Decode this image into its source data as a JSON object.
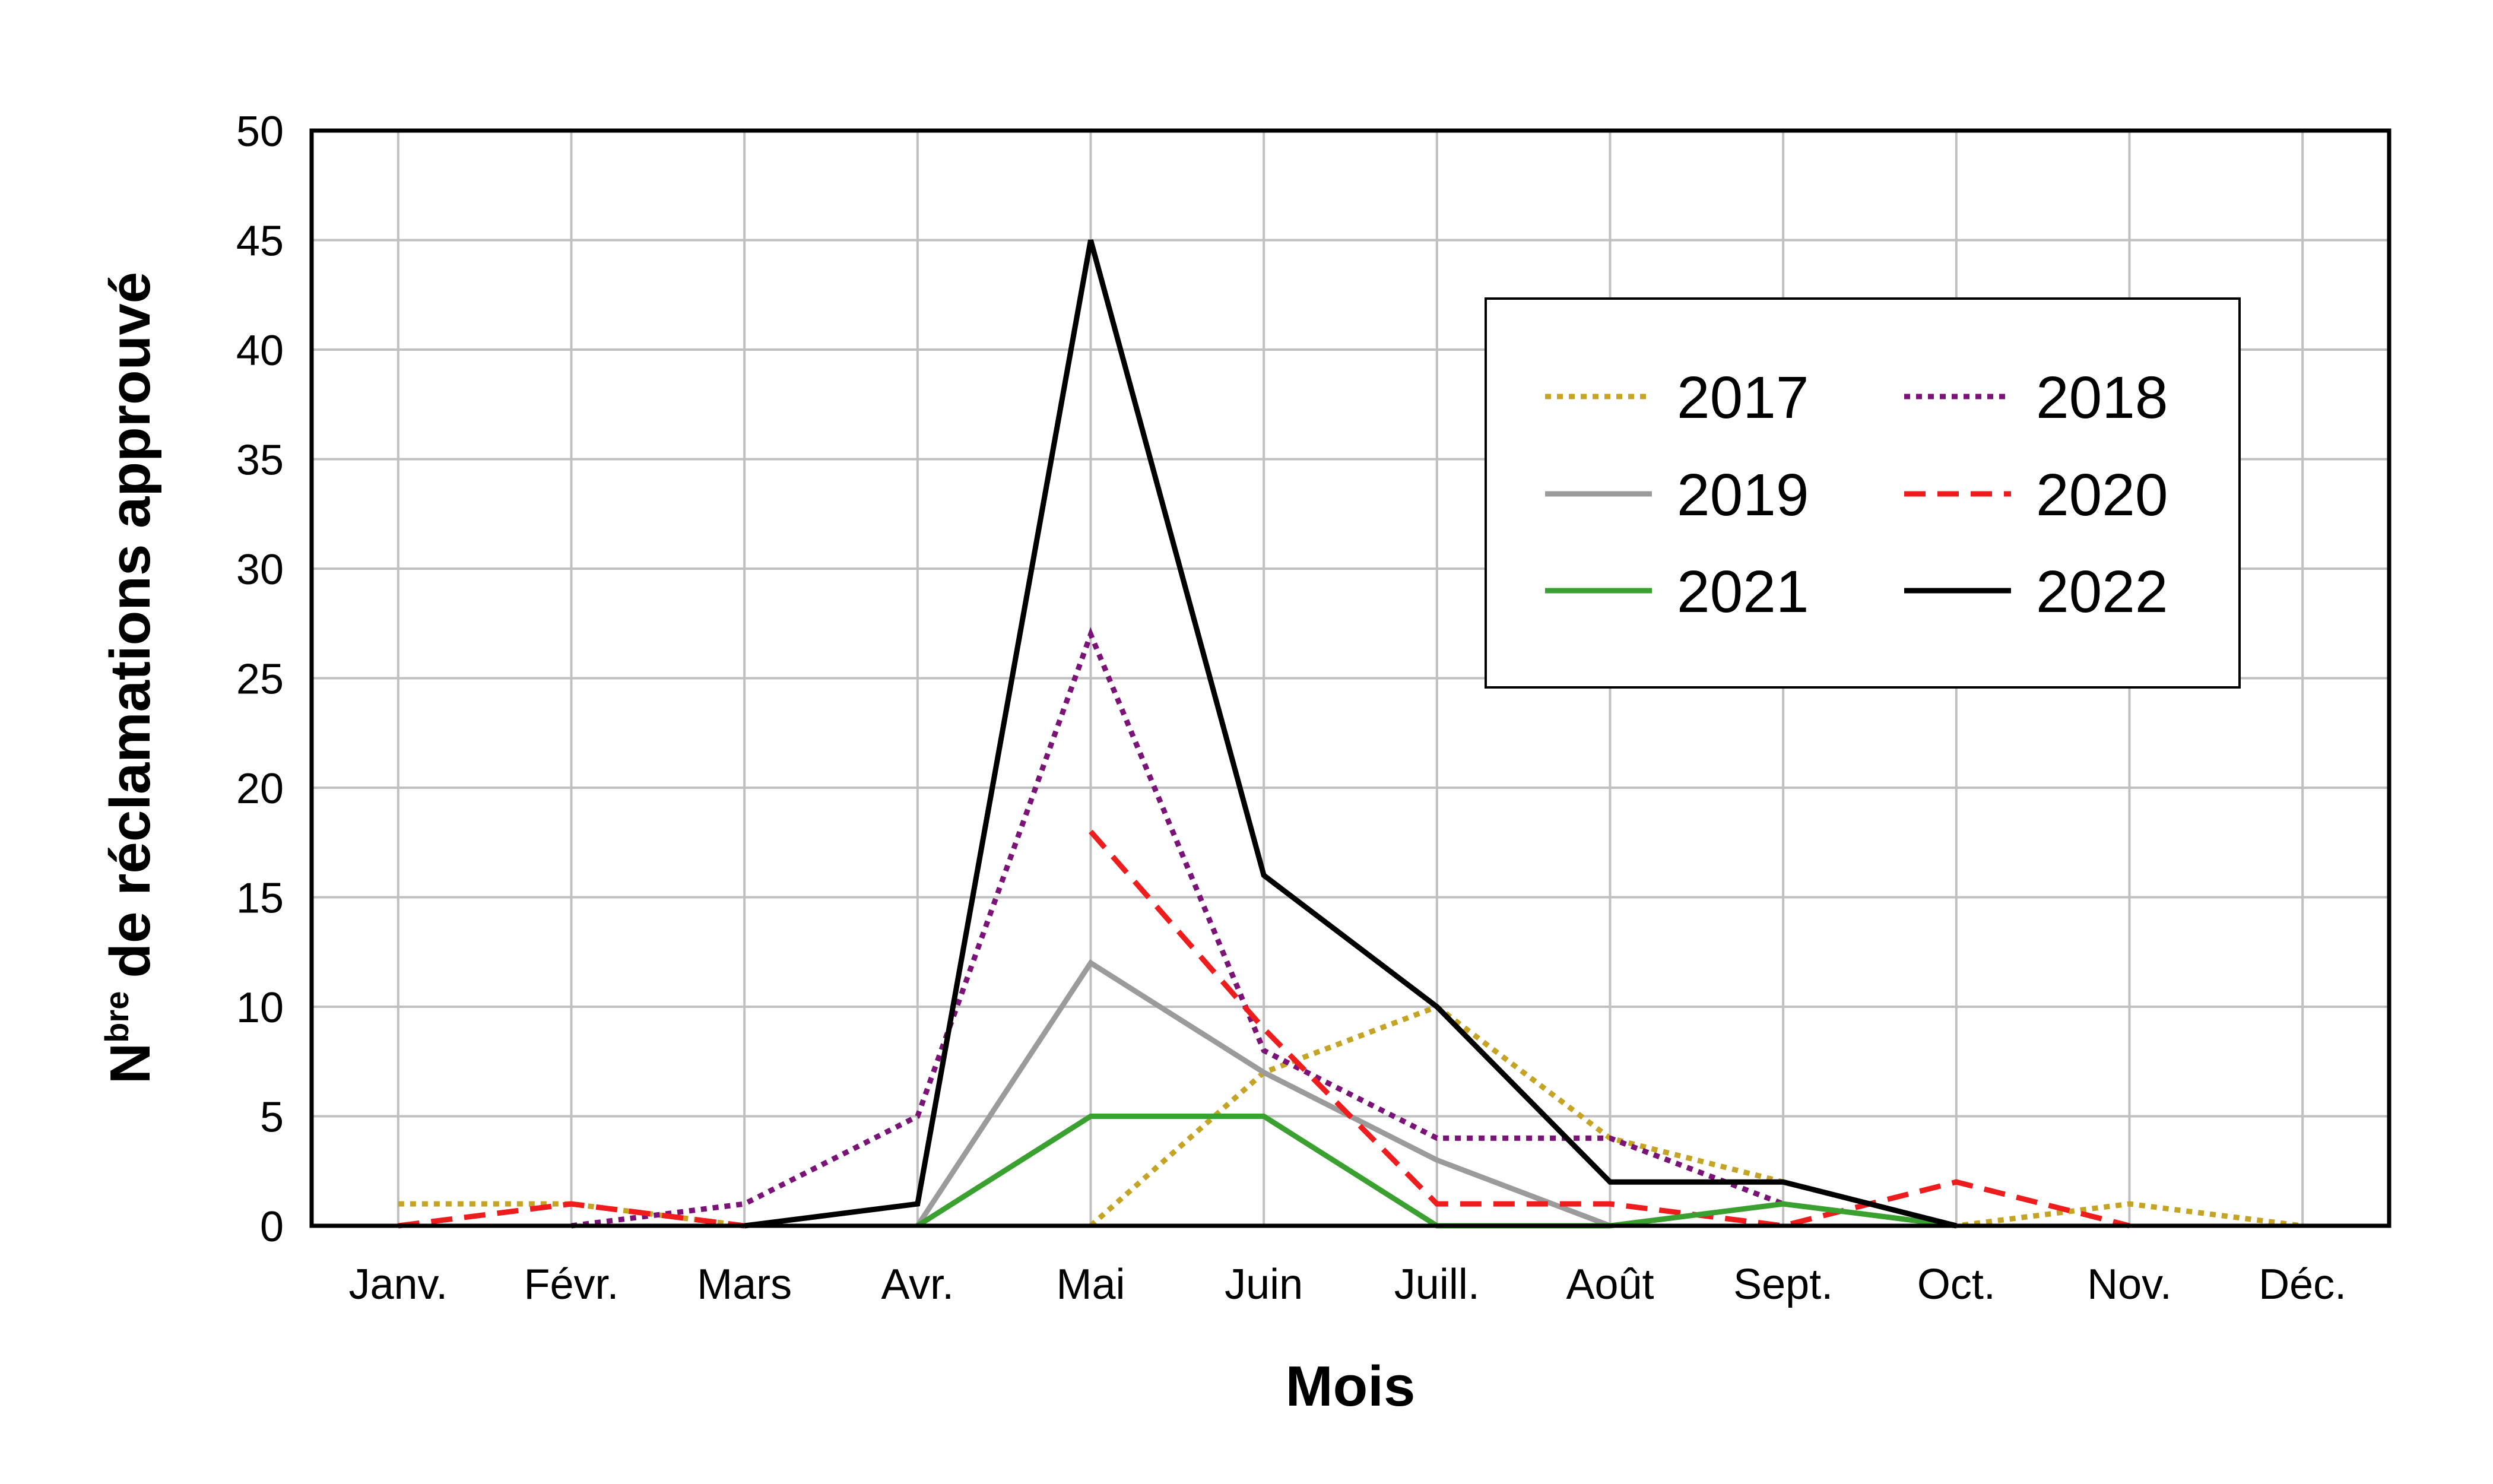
{
  "chart_data": {
    "type": "line",
    "xlabel": "Mois",
    "ylabel": "de réclamations approuvé",
    "ylabel_prefix": "N",
    "ylabel_superscript": "bre",
    "ylim": [
      0,
      50
    ],
    "yticks": [
      0,
      5,
      10,
      15,
      20,
      25,
      30,
      35,
      40,
      45,
      50
    ],
    "categories": [
      "Janv.",
      "Févr.",
      "Mars",
      "Avr.",
      "Mai",
      "Juin",
      "Juill.",
      "Août",
      "Sept.",
      "Oct.",
      "Nov.",
      "Déc."
    ],
    "grid": true,
    "legend_position": "top-right",
    "series": [
      {
        "name": "2017",
        "color": "#c4a325",
        "style": "dotted",
        "values": [
          1,
          1,
          0,
          null,
          0,
          7,
          10,
          4,
          2,
          0,
          1,
          0
        ]
      },
      {
        "name": "2018",
        "color": "#7a1278",
        "style": "dotted",
        "values": [
          null,
          0,
          1,
          5,
          27,
          8,
          4,
          4,
          1,
          null,
          null,
          null
        ]
      },
      {
        "name": "2019",
        "color": "#9b9b9b",
        "style": "solid",
        "values": [
          null,
          null,
          null,
          0,
          12,
          7,
          3,
          0,
          null,
          null,
          null,
          null
        ]
      },
      {
        "name": "2020",
        "color": "#ee1c1c",
        "style": "dashed",
        "values": [
          0,
          1,
          0,
          null,
          18,
          9,
          1,
          1,
          0,
          2,
          0,
          null
        ]
      },
      {
        "name": "2021",
        "color": "#3aa02f",
        "style": "solid",
        "values": [
          null,
          null,
          null,
          0,
          5,
          5,
          0,
          0,
          1,
          0,
          null,
          null
        ]
      },
      {
        "name": "2022",
        "color": "#000000",
        "style": "solid",
        "values": [
          null,
          null,
          0,
          1,
          45,
          16,
          10,
          2,
          2,
          0,
          null,
          null
        ]
      }
    ]
  }
}
